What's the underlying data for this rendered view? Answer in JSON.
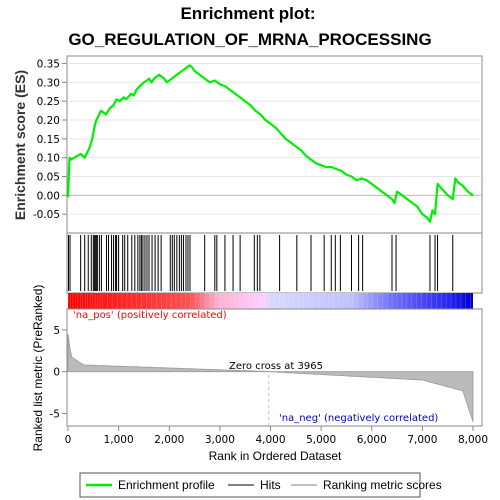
{
  "chart_data": {
    "type": "line",
    "title_line1": "Enrichment plot:",
    "title_line2": "GO_REGULATION_OF_MRNA_PROCESSING",
    "es_panel": {
      "ylabel": "Enrichment score (ES)",
      "ylim": [
        -0.1,
        0.37
      ],
      "yticks": [
        0.35,
        0.3,
        0.25,
        0.2,
        0.15,
        0.1,
        0.05,
        0.0,
        -0.05
      ],
      "ytick_labels": [
        "0.35",
        "0.30",
        "0.25",
        "0.20",
        "0.15",
        "0.10",
        "0.05",
        "0.00",
        "-0.05"
      ],
      "series": [
        {
          "name": "Enrichment profile",
          "color": "#00ee00",
          "x": [
            0,
            30,
            60,
            250,
            330,
            420,
            480,
            520,
            560,
            600,
            650,
            750,
            820,
            900,
            960,
            1020,
            1100,
            1150,
            1250,
            1300,
            1350,
            1420,
            1460,
            1500,
            1560,
            1600,
            1650,
            1700,
            1750,
            1800,
            1850,
            1900,
            1950,
            2000,
            2050,
            2100,
            2150,
            2200,
            2250,
            2300,
            2350,
            2400,
            2450,
            2500,
            2600,
            2700,
            2800,
            2900,
            3000,
            3100,
            3200,
            3300,
            3400,
            3500,
            3600,
            3700,
            3800,
            3900,
            4000,
            4100,
            4200,
            4300,
            4400,
            4500,
            4600,
            4700,
            4800,
            4900,
            5000,
            5100,
            5200,
            5300,
            5400,
            5500,
            5600,
            5700,
            5800,
            5900,
            6000,
            6100,
            6200,
            6300,
            6400,
            6450,
            6500,
            6600,
            6700,
            6800,
            6900,
            7000,
            7100,
            7150,
            7200,
            7250,
            7300,
            7400,
            7500,
            7600,
            7650,
            7700,
            7800,
            7900,
            8000
          ],
          "y": [
            -0.005,
            0.1,
            0.095,
            0.11,
            0.1,
            0.125,
            0.15,
            0.18,
            0.2,
            0.21,
            0.225,
            0.215,
            0.23,
            0.24,
            0.255,
            0.25,
            0.26,
            0.255,
            0.27,
            0.265,
            0.28,
            0.29,
            0.295,
            0.3,
            0.305,
            0.31,
            0.3,
            0.31,
            0.315,
            0.32,
            0.315,
            0.31,
            0.3,
            0.305,
            0.31,
            0.315,
            0.32,
            0.325,
            0.33,
            0.335,
            0.34,
            0.345,
            0.34,
            0.33,
            0.32,
            0.31,
            0.3,
            0.305,
            0.295,
            0.29,
            0.28,
            0.27,
            0.26,
            0.25,
            0.24,
            0.225,
            0.215,
            0.2,
            0.19,
            0.18,
            0.165,
            0.15,
            0.14,
            0.13,
            0.12,
            0.105,
            0.095,
            0.085,
            0.08,
            0.075,
            0.075,
            0.07,
            0.065,
            0.055,
            0.05,
            0.04,
            0.045,
            0.04,
            0.03,
            0.02,
            0.01,
            0.0,
            -0.01,
            -0.02,
            0.01,
            0.0,
            -0.01,
            -0.02,
            -0.03,
            -0.05,
            -0.06,
            -0.07,
            -0.04,
            -0.05,
            0.03,
            0.015,
            0.0,
            -0.01,
            0.045,
            0.035,
            0.025,
            0.01,
            0.0
          ]
        }
      ]
    },
    "hits_panel": {
      "hit_positions": [
        10,
        40,
        250,
        330,
        400,
        460,
        500,
        520,
        540,
        560,
        580,
        620,
        660,
        760,
        800,
        860,
        900,
        940,
        960,
        1000,
        1080,
        1120,
        1180,
        1260,
        1320,
        1380,
        1420,
        1450,
        1480,
        1520,
        1560,
        1600,
        1660,
        1720,
        1780,
        1840,
        2020,
        2060,
        2100,
        2150,
        2200,
        2240,
        2280,
        2330,
        2370,
        2410,
        2700,
        2900,
        2940,
        3100,
        3260,
        3400,
        3680,
        3740,
        3790,
        4180,
        4520,
        4800,
        5060,
        5200,
        5280,
        5380,
        5600,
        5740,
        5820,
        6400,
        6480,
        7150,
        7250,
        7300,
        7600
      ]
    },
    "ranking_bar": {
      "colors": [
        "#ff0000",
        "#ffc0ff",
        "#c0c0ff",
        "#0000ff"
      ],
      "pos_label": "'na_pos' (positively correlated)",
      "neg_label": "'na_neg' (negatively correlated)"
    },
    "metric_panel": {
      "ylabel": "Ranked list metric (PreRanked)",
      "ylim": [
        -6.5,
        7.5
      ],
      "yticks": [
        5,
        0,
        -5
      ],
      "ytick_labels": [
        "5",
        "0",
        "-5"
      ],
      "zero_cross_label": "Zero cross at 3965",
      "zero_cross": 3965
    },
    "xaxis": {
      "xlabel": "Rank in Ordered Dataset",
      "xlim": [
        0,
        8200
      ],
      "xticks": [
        0,
        1000,
        2000,
        3000,
        4000,
        5000,
        6000,
        7000,
        8000
      ],
      "xtick_labels": [
        "0",
        "1,000",
        "2,000",
        "3,000",
        "4,000",
        "5,000",
        "6,000",
        "7,000",
        "8,000"
      ]
    },
    "legend": {
      "items": [
        {
          "label": "Enrichment profile",
          "color": "#00ee00"
        },
        {
          "label": "Hits",
          "color": "#808080"
        },
        {
          "label": "Ranking metric scores",
          "color": "#c0c0c0"
        }
      ]
    }
  }
}
